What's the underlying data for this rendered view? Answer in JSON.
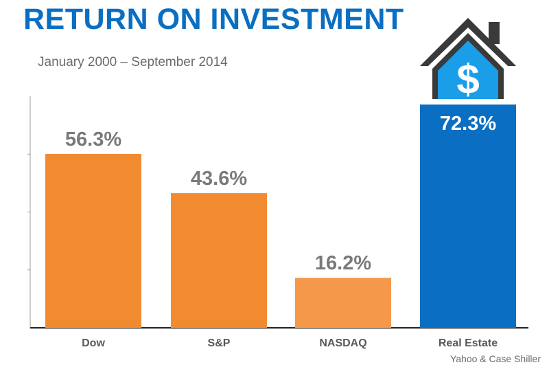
{
  "title": "RETURN ON INVESTMENT",
  "subtitle": "January 2000 – September 2014",
  "source": "Yahoo & Case Shiller",
  "icon": "house-dollar-icon",
  "colors": {
    "orange": "#f28b30",
    "orange_light": "#f5984a",
    "blue": "#0a6fc2",
    "label_gray": "#7a7a7a",
    "axis": "#222222",
    "house_dark": "#3a3a3a",
    "house_blue": "#1b9ee8"
  },
  "chart_data": {
    "type": "bar",
    "categories": [
      "Dow",
      "S&P",
      "NASDAQ",
      "Real Estate"
    ],
    "values": [
      56.3,
      43.6,
      16.2,
      72.3
    ],
    "data_labels": [
      "56.3%",
      "43.6%",
      "16.2%",
      "72.3%"
    ],
    "title": "RETURN ON INVESTMENT",
    "subtitle": "January 2000 – September 2014",
    "xlabel": "",
    "ylabel": "",
    "ylim": [
      0,
      75
    ],
    "grid": false,
    "legend": "none"
  }
}
